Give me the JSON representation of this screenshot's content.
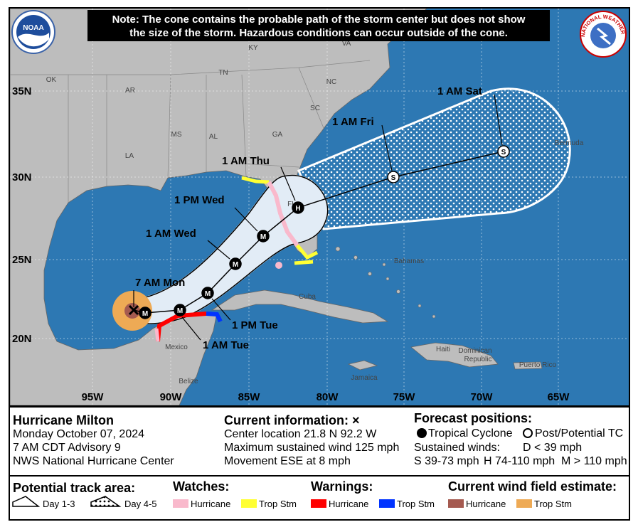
{
  "note": [
    "Note: The cone contains the probable path of the storm center but does not show",
    "the size of the storm. Hazardous conditions can occur outside of the cone."
  ],
  "logos": {
    "noaa": "NOAA",
    "nws": "NATIONAL WEATHER SERVICE"
  },
  "map": {
    "place_labels": [
      "KY",
      "VA",
      "TN",
      "NC",
      "OK",
      "AR",
      "SC",
      "MS",
      "AL",
      "GA",
      "LA",
      "FL",
      "Bermuda",
      "Bahamas",
      "Cuba",
      "Jamaica",
      "Haiti",
      "Dominican",
      "Republic",
      "Puerto Rico",
      "Mexico",
      "Belize"
    ],
    "lat_labels": [
      "35N",
      "30N",
      "25N",
      "20N"
    ],
    "lon_labels": [
      "95W",
      "90W",
      "85W",
      "80W",
      "75W",
      "70W",
      "65W"
    ],
    "forecast_points": [
      {
        "time": "7 AM Mon",
        "symbol": "M",
        "filled": true
      },
      {
        "time": "1 AM Tue",
        "symbol": "M",
        "filled": true
      },
      {
        "time": "1 PM Tue",
        "symbol": "M",
        "filled": true
      },
      {
        "time": "1 AM Wed",
        "symbol": "M",
        "filled": true
      },
      {
        "time": "1 PM Wed",
        "symbol": "M",
        "filled": true
      },
      {
        "time": "1 AM Thu",
        "symbol": "H",
        "filled": true
      },
      {
        "time": "1 AM Fri",
        "symbol": "S",
        "filled": false
      },
      {
        "time": "1 AM Sat",
        "symbol": "S",
        "filled": false
      }
    ]
  },
  "storm": {
    "title": "Hurricane Milton",
    "lines": [
      "Monday October 07, 2024",
      "7 AM CDT Advisory 9",
      "NWS National Hurricane Center"
    ]
  },
  "current": {
    "title": "Current information: ×",
    "lines": [
      "Center location 21.8 N 92.2 W",
      "Maximum sustained wind 125 mph",
      "Movement ESE at 8 mph"
    ]
  },
  "forecast_key": {
    "title": "Forecast positions:",
    "tropical": "Tropical Cyclone",
    "post": "Post/Potential TC",
    "winds_label": "Sustained winds:",
    "d": "D < 39 mph",
    "s": "S 39-73 mph",
    "h": "H 74-110 mph",
    "m": "M > 110 mph"
  },
  "legend": {
    "track_title": "Potential track area:",
    "day13": "Day 1-3",
    "day45": "Day 4-5",
    "groups": [
      {
        "title": "Watches:",
        "items": [
          {
            "name": "Hurricane",
            "color": "#f9b9cc"
          },
          {
            "name": "Trop Stm",
            "color": "#ffff33"
          }
        ]
      },
      {
        "title": "Warnings:",
        "items": [
          {
            "name": "Hurricane",
            "color": "#ff0000"
          },
          {
            "name": "Trop Stm",
            "color": "#0033ff"
          }
        ]
      },
      {
        "title": "Current wind field estimate:",
        "items": [
          {
            "name": "Hurricane",
            "color": "#a55a50"
          },
          {
            "name": "Trop Stm",
            "color": "#eeaa55"
          }
        ]
      }
    ]
  }
}
